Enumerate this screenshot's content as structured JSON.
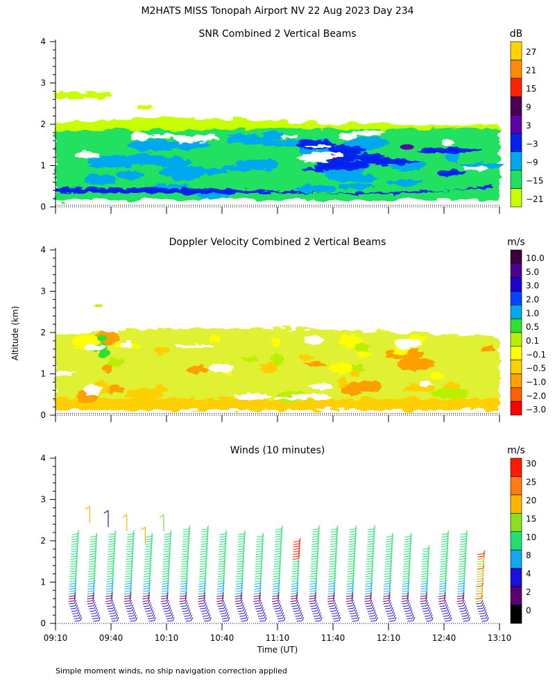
{
  "page": {
    "title": "M2HATS MISS Tonopah Airport NV  22 Aug 2023 Day 234",
    "ylabel": "Altitude (km)",
    "xlabel": "Time (UT)",
    "footnote": "Simple moment winds, no ship navigation correction applied"
  },
  "chart_data": [
    {
      "type": "heatmap",
      "title": "SNR Combined 2 Vertical Beams",
      "xlabel": "Time (UT)",
      "ylabel": "Altitude (km)",
      "x_ticks": [
        "09:10",
        "09:40",
        "10:10",
        "10:40",
        "11:10",
        "11:40",
        "12:10",
        "12:40",
        "13:10"
      ],
      "y_ticks": [
        0,
        1,
        2,
        3,
        4
      ],
      "ylim": [
        0,
        4
      ],
      "colorbar": {
        "unit": "dB",
        "labels": [
          "27",
          "21",
          "15",
          "9",
          "3",
          "−3",
          "−9",
          "−15",
          "−21"
        ],
        "colors": [
          "#ffd400",
          "#ff8c00",
          "#ff2200",
          "#4a0052",
          "#5c00a8",
          "#0022ee",
          "#00a8f0",
          "#20e060",
          "#c8ff00"
        ]
      },
      "layers": [
        {
          "altitude_km": [
            0.2,
            2.0
          ],
          "level": "−15 to −9",
          "color": "#20e060"
        },
        {
          "altitude_km": [
            0.3,
            0.5
          ],
          "level": "−3 to 3",
          "color": "#0022ee"
        },
        {
          "altitude_km": [
            0.8,
            1.6
          ],
          "level": "−3 to 3",
          "color": "#0022ee",
          "times": [
            "11:20",
            "13:10"
          ]
        },
        {
          "altitude_km": [
            1.9,
            2.2
          ],
          "level": "−21 to −15",
          "color": "#c8ff00"
        },
        {
          "altitude_km": [
            2.6,
            2.8
          ],
          "level": "−21 to −15",
          "color": "#c8ff00",
          "times": [
            "09:10",
            "09:40"
          ]
        }
      ]
    },
    {
      "type": "heatmap",
      "title": "Doppler Velocity Combined 2 Vertical Beams",
      "xlabel": "Time (UT)",
      "ylabel": "Altitude (km)",
      "x_ticks": [
        "09:10",
        "09:40",
        "10:10",
        "10:40",
        "11:10",
        "11:40",
        "12:10",
        "12:40",
        "13:10"
      ],
      "y_ticks": [
        0,
        1,
        2,
        3,
        4
      ],
      "ylim": [
        0,
        4
      ],
      "colorbar": {
        "unit": "m/s",
        "labels": [
          "10.0",
          "5.0",
          "3.0",
          "2.0",
          "1.0",
          "0.5",
          "0.1",
          "−0.1",
          "−0.5",
          "−1.0",
          "−2.0",
          "−3.0"
        ],
        "colors": [
          "#3a0040",
          "#4d0090",
          "#2200cc",
          "#0044ff",
          "#00a8f0",
          "#30e030",
          "#b8f000",
          "#ffff00",
          "#ffd000",
          "#ffa000",
          "#ff6000",
          "#ff0000"
        ]
      },
      "layers": [
        {
          "altitude_km": [
            0.1,
            0.4
          ],
          "level": "−0.5 to −1.0",
          "color": "#ffd000"
        },
        {
          "altitude_km": [
            0.4,
            2.0
          ],
          "level": "0.1 to −0.5",
          "color": "#e0f030"
        }
      ]
    },
    {
      "type": "barbs",
      "title": "Winds (10 minutes)",
      "xlabel": "Time (UT)",
      "ylabel": "Altitude (km)",
      "x_ticks": [
        "09:10",
        "09:40",
        "10:10",
        "10:40",
        "11:10",
        "11:40",
        "12:10",
        "12:40",
        "13:10"
      ],
      "y_ticks": [
        0,
        1,
        2,
        3,
        4
      ],
      "ylim": [
        0,
        4
      ],
      "interval_min": 10,
      "profile_times": [
        "09:20",
        "09:30",
        "09:40",
        "09:50",
        "10:00",
        "10:10",
        "10:20",
        "10:30",
        "10:40",
        "10:50",
        "11:00",
        "11:10",
        "11:20",
        "11:30",
        "11:40",
        "11:50",
        "12:00",
        "12:10",
        "12:20",
        "12:30",
        "12:40",
        "12:50",
        "13:00"
      ],
      "profile_top_km": [
        2.2,
        2.1,
        2.2,
        2.2,
        2.1,
        2.2,
        2.3,
        2.3,
        2.2,
        2.2,
        2.1,
        2.3,
        2.0,
        2.3,
        2.3,
        2.3,
        2.3,
        2.1,
        2.1,
        1.8,
        2.2,
        2.2,
        1.7
      ],
      "colorbar": {
        "unit": "m/s",
        "labels": [
          "30",
          "25",
          "20",
          "15",
          "10",
          "8",
          "4",
          "2",
          "0"
        ],
        "colors": [
          "#ff1a00",
          "#ff7a10",
          "#ffb400",
          "#88e020",
          "#20e070",
          "#10a8f0",
          "#1a10e0",
          "#5a0070",
          "#000000"
        ]
      }
    }
  ]
}
